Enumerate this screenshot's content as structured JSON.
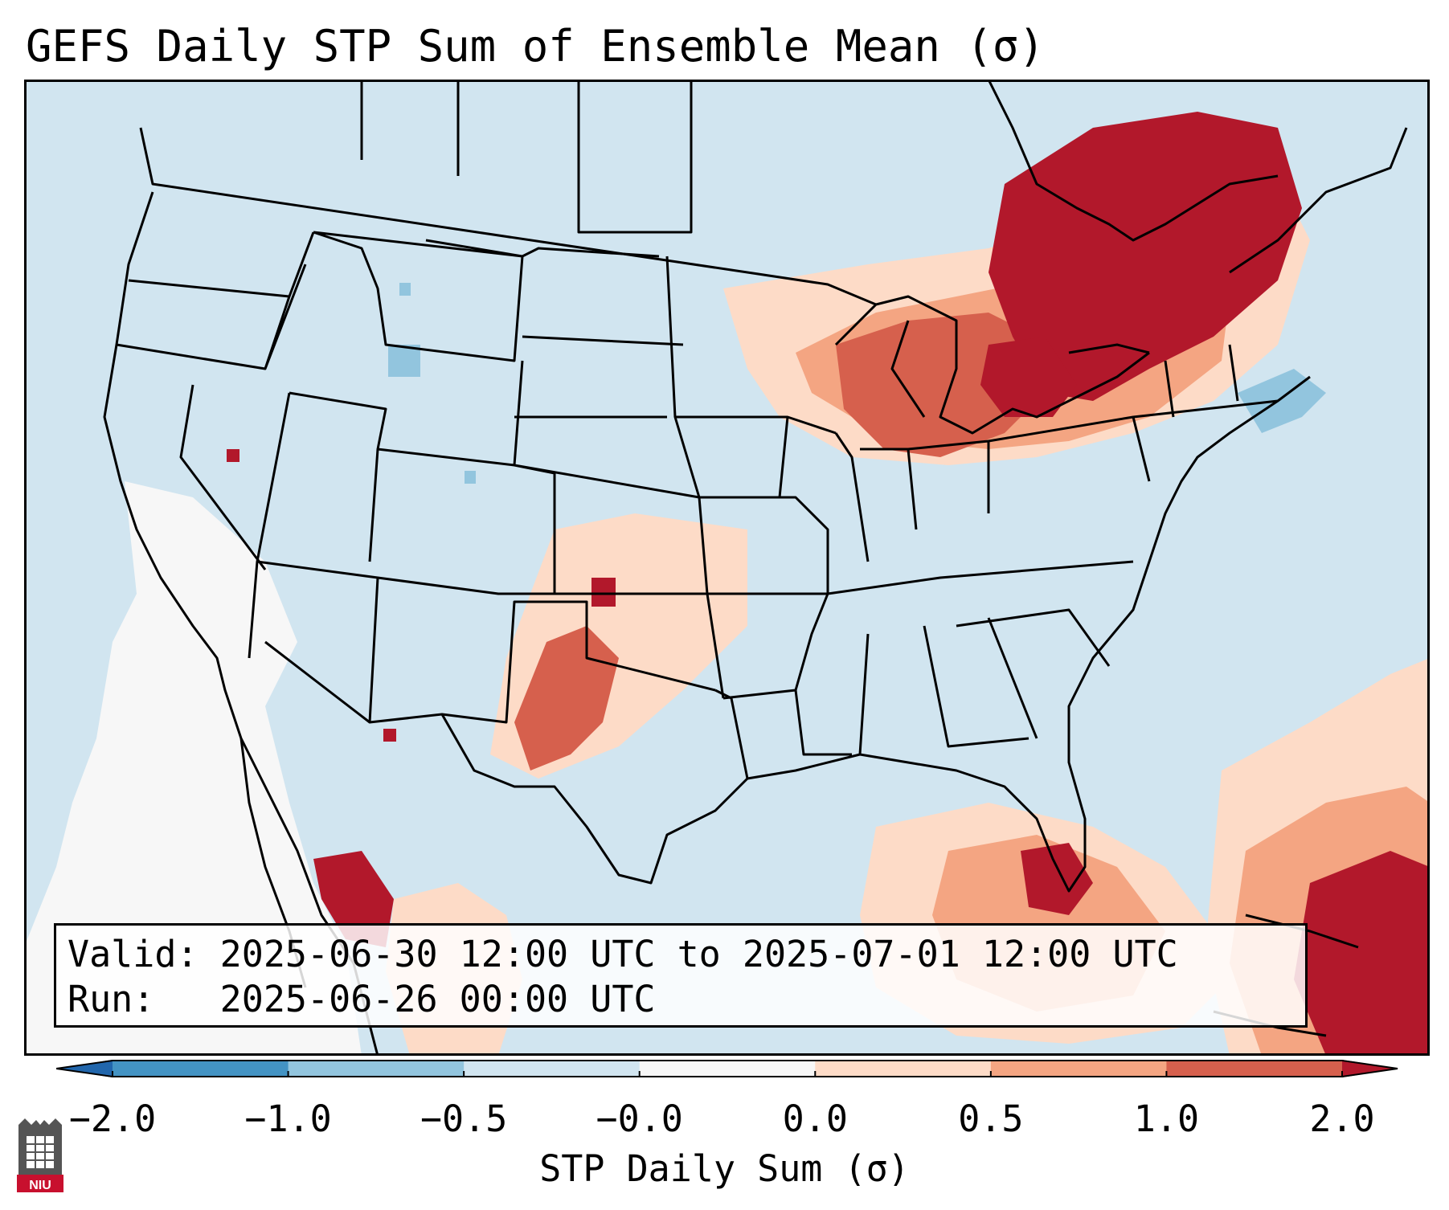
{
  "title": "GEFS Daily STP Sum of Ensemble Mean (σ)",
  "info": {
    "valid_label": "Valid:",
    "valid_value": "2025-06-30 12:00 UTC to 2025-07-01 12:00 UTC",
    "run_label": "Run:",
    "run_value": "2025-06-26 00:00 UTC"
  },
  "colorbar": {
    "label": "STP Daily Sum (σ)",
    "ticks": [
      "−2.0",
      "−1.0",
      "−0.5",
      "−0.0",
      "0.0",
      "0.5",
      "1.0",
      "2.0"
    ],
    "segments": [
      {
        "from": -2.0,
        "to": -1.0,
        "color": "#4393c3"
      },
      {
        "from": -1.0,
        "to": -0.5,
        "color": "#92c5de"
      },
      {
        "from": -0.5,
        "to": 0.0,
        "color": "#d1e5f0"
      },
      {
        "from": 0.0,
        "to": 0.0,
        "color": "#f7f7f7"
      },
      {
        "from": 0.0,
        "to": 0.5,
        "color": "#fddbc7"
      },
      {
        "from": 0.5,
        "to": 1.0,
        "color": "#f4a582"
      },
      {
        "from": 1.0,
        "to": 2.0,
        "color": "#d6604d"
      }
    ],
    "under_color": "#2166ac",
    "over_color": "#b2182b"
  },
  "colors": {
    "background_field": "#d1e5f0",
    "near_zero": "#f7f7f7",
    "light_pos": "#fddbc7",
    "mid_pos": "#f4a582",
    "high_pos": "#d6604d",
    "max_pos": "#b2182b",
    "light_neg": "#92c5de"
  },
  "logo": {
    "text": "NIU"
  }
}
